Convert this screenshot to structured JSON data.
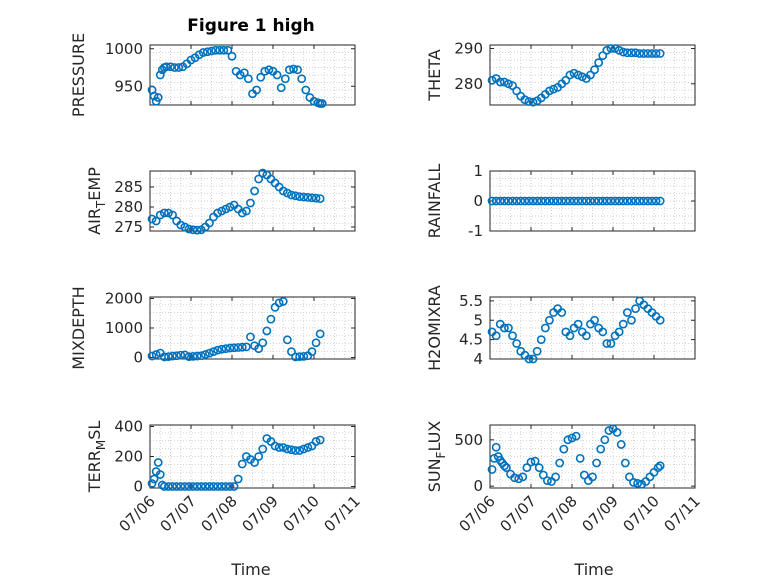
{
  "figure": {
    "title": "Figure 1 high"
  },
  "colors": {
    "series": "#0072BD",
    "axis": "#262626",
    "grid": "#c8c8c8"
  },
  "chart_data": [
    {
      "type": "scatter",
      "ylabel": "PRESSURE",
      "ylim": [
        925,
        1005
      ],
      "yticks": [
        950,
        1000
      ],
      "xlim": [
        0,
        5
      ],
      "xticks": [
        "07/06",
        "07/07",
        "07/08",
        "07/09",
        "07/10",
        "07/11"
      ],
      "grid": true,
      "x": [
        0.05,
        0.1,
        0.15,
        0.2,
        0.25,
        0.3,
        0.35,
        0.4,
        0.5,
        0.6,
        0.7,
        0.8,
        0.9,
        1.0,
        1.1,
        1.2,
        1.3,
        1.4,
        1.5,
        1.6,
        1.7,
        1.8,
        1.9,
        2.0,
        2.1,
        2.2,
        2.3,
        2.4,
        2.5,
        2.6,
        2.7,
        2.8,
        2.9,
        3.0,
        3.1,
        3.2,
        3.3,
        3.4,
        3.5,
        3.6,
        3.7,
        3.8,
        3.9,
        4.0,
        4.1,
        4.15,
        4.2
      ],
      "y": [
        945,
        937,
        930,
        935,
        965,
        972,
        975,
        976,
        976,
        975,
        975,
        976,
        980,
        985,
        988,
        992,
        995,
        996,
        997,
        998,
        998,
        998,
        998,
        990,
        970,
        965,
        968,
        960,
        940,
        945,
        962,
        970,
        972,
        970,
        965,
        948,
        960,
        972,
        973,
        972,
        960,
        945,
        935,
        930,
        928,
        927,
        927
      ]
    },
    {
      "type": "scatter",
      "ylabel": "THETA",
      "ylim": [
        274,
        291
      ],
      "yticks": [
        280,
        290
      ],
      "xlim": [
        0,
        5
      ],
      "xticks": [
        "07/06",
        "07/07",
        "07/08",
        "07/09",
        "07/10",
        "07/11"
      ],
      "grid": true,
      "x": [
        0.05,
        0.15,
        0.25,
        0.35,
        0.45,
        0.55,
        0.65,
        0.75,
        0.85,
        0.95,
        1.05,
        1.15,
        1.25,
        1.35,
        1.45,
        1.55,
        1.65,
        1.75,
        1.85,
        1.95,
        2.05,
        2.15,
        2.25,
        2.35,
        2.45,
        2.55,
        2.65,
        2.75,
        2.85,
        2.95,
        3.05,
        3.15,
        3.25,
        3.35,
        3.45,
        3.55,
        3.65,
        3.75,
        3.85,
        3.95,
        4.05,
        4.15
      ],
      "y": [
        281,
        281.5,
        280.5,
        280.5,
        280,
        279.5,
        278,
        276.5,
        275.5,
        275,
        274.8,
        275.2,
        276,
        277,
        278,
        278.5,
        279,
        280,
        281,
        282.5,
        283,
        282.5,
        282,
        281.5,
        282.5,
        284,
        286,
        288,
        289.5,
        290,
        290,
        289.5,
        289,
        288.8,
        288.8,
        288.8,
        288.6,
        288.6,
        288.6,
        288.6,
        288.6,
        288.6
      ]
    },
    {
      "type": "scatter",
      "ylabel": "AIR_TEMP",
      "ylim": [
        274,
        289
      ],
      "yticks": [
        275,
        280,
        285
      ],
      "xlim": [
        0,
        5
      ],
      "xticks": [
        "07/06",
        "07/07",
        "07/08",
        "07/09",
        "07/10",
        "07/11"
      ],
      "grid": true,
      "x": [
        0.05,
        0.15,
        0.25,
        0.35,
        0.45,
        0.55,
        0.65,
        0.75,
        0.85,
        0.95,
        1.05,
        1.15,
        1.25,
        1.35,
        1.45,
        1.55,
        1.65,
        1.75,
        1.85,
        1.95,
        2.05,
        2.15,
        2.25,
        2.35,
        2.45,
        2.55,
        2.65,
        2.75,
        2.85,
        2.95,
        3.05,
        3.15,
        3.25,
        3.35,
        3.45,
        3.55,
        3.65,
        3.75,
        3.85,
        3.95,
        4.05,
        4.15
      ],
      "y": [
        277,
        276.5,
        278,
        278.5,
        278.5,
        278,
        276.5,
        275.5,
        275,
        274.5,
        274.3,
        274.2,
        274.3,
        275,
        276,
        277.5,
        278.5,
        279,
        279.5,
        280,
        280.5,
        279.5,
        278.5,
        279,
        281,
        284,
        287,
        288.5,
        288,
        287,
        286,
        285,
        284,
        283.5,
        283,
        282.8,
        282.6,
        282.5,
        282.4,
        282.3,
        282.2,
        282.1
      ]
    },
    {
      "type": "scatter",
      "ylabel": "RAINFALL",
      "ylim": [
        -1,
        1
      ],
      "yticks": [
        -1,
        0,
        1
      ],
      "xlim": [
        0,
        5
      ],
      "xticks": [
        "07/06",
        "07/07",
        "07/08",
        "07/09",
        "07/10",
        "07/11"
      ],
      "grid": true,
      "x": [
        0.05,
        0.15,
        0.25,
        0.35,
        0.45,
        0.55,
        0.65,
        0.75,
        0.85,
        0.95,
        1.05,
        1.15,
        1.25,
        1.35,
        1.45,
        1.55,
        1.65,
        1.75,
        1.85,
        1.95,
        2.05,
        2.15,
        2.25,
        2.35,
        2.45,
        2.55,
        2.65,
        2.75,
        2.85,
        2.95,
        3.05,
        3.15,
        3.25,
        3.35,
        3.45,
        3.55,
        3.65,
        3.75,
        3.85,
        3.95,
        4.05,
        4.15
      ],
      "y": [
        0,
        0,
        0,
        0,
        0,
        0,
        0,
        0,
        0,
        0,
        0,
        0,
        0,
        0,
        0,
        0,
        0,
        0,
        0,
        0,
        0,
        0,
        0,
        0,
        0,
        0,
        0,
        0,
        0,
        0,
        0,
        0,
        0,
        0,
        0,
        0,
        0,
        0,
        0,
        0,
        0,
        0
      ]
    },
    {
      "type": "scatter",
      "ylabel": "MIXDEPTH",
      "ylim": [
        -50,
        2050
      ],
      "yticks": [
        0,
        1000,
        2000
      ],
      "xlim": [
        0,
        5
      ],
      "xticks": [
        "07/06",
        "07/07",
        "07/08",
        "07/09",
        "07/10",
        "07/11"
      ],
      "grid": true,
      "x": [
        0.05,
        0.15,
        0.25,
        0.35,
        0.45,
        0.55,
        0.65,
        0.75,
        0.85,
        0.95,
        1.05,
        1.15,
        1.25,
        1.35,
        1.45,
        1.55,
        1.65,
        1.75,
        1.85,
        1.95,
        2.05,
        2.15,
        2.25,
        2.35,
        2.45,
        2.55,
        2.65,
        2.75,
        2.85,
        2.95,
        3.05,
        3.15,
        3.25,
        3.35,
        3.45,
        3.55,
        3.65,
        3.75,
        3.85,
        3.95,
        4.05,
        4.15
      ],
      "y": [
        50,
        100,
        150,
        20,
        30,
        50,
        60,
        80,
        90,
        30,
        40,
        50,
        60,
        100,
        150,
        200,
        250,
        280,
        300,
        320,
        330,
        340,
        350,
        360,
        700,
        400,
        300,
        500,
        900,
        1300,
        1700,
        1850,
        1900,
        600,
        200,
        20,
        30,
        40,
        60,
        200,
        500,
        800
      ]
    },
    {
      "type": "scatter",
      "ylabel": "H2OMIXRA",
      "ylim": [
        4,
        5.6
      ],
      "yticks": [
        4,
        4.5,
        5,
        5.5
      ],
      "xlim": [
        0,
        5
      ],
      "xticks": [
        "07/06",
        "07/07",
        "07/08",
        "07/09",
        "07/10",
        "07/11"
      ],
      "grid": true,
      "x": [
        0.05,
        0.15,
        0.25,
        0.35,
        0.45,
        0.55,
        0.65,
        0.75,
        0.85,
        0.95,
        1.05,
        1.15,
        1.25,
        1.35,
        1.45,
        1.55,
        1.65,
        1.75,
        1.85,
        1.95,
        2.05,
        2.15,
        2.25,
        2.35,
        2.45,
        2.55,
        2.65,
        2.75,
        2.85,
        2.95,
        3.05,
        3.15,
        3.25,
        3.35,
        3.45,
        3.55,
        3.65,
        3.75,
        3.85,
        3.95,
        4.05,
        4.15
      ],
      "y": [
        4.7,
        4.6,
        4.9,
        4.8,
        4.8,
        4.6,
        4.4,
        4.2,
        4.1,
        4.0,
        4.0,
        4.2,
        4.5,
        4.8,
        5.0,
        5.2,
        5.3,
        5.2,
        4.7,
        4.6,
        4.8,
        4.9,
        4.7,
        4.6,
        4.9,
        5.0,
        4.8,
        4.7,
        4.4,
        4.4,
        4.6,
        4.7,
        4.9,
        5.2,
        5.0,
        5.3,
        5.5,
        5.4,
        5.3,
        5.2,
        5.1,
        5.0
      ]
    },
    {
      "type": "scatter",
      "ylabel": "TERR_MSL",
      "ylim": [
        -10,
        410
      ],
      "yticks": [
        0,
        200,
        400
      ],
      "xlim": [
        0,
        5
      ],
      "xticks": [
        "07/06",
        "07/07",
        "07/08",
        "07/09",
        "07/10",
        "07/11"
      ],
      "grid": true,
      "x": [
        0.05,
        0.1,
        0.15,
        0.2,
        0.25,
        0.3,
        0.35,
        0.45,
        0.55,
        0.65,
        0.75,
        0.85,
        0.95,
        1.05,
        1.15,
        1.25,
        1.35,
        1.45,
        1.55,
        1.65,
        1.75,
        1.85,
        1.95,
        2.05,
        2.15,
        2.25,
        2.35,
        2.45,
        2.55,
        2.65,
        2.75,
        2.85,
        2.95,
        3.05,
        3.15,
        3.25,
        3.35,
        3.45,
        3.55,
        3.65,
        3.75,
        3.85,
        3.95,
        4.05,
        4.15
      ],
      "y": [
        20,
        50,
        100,
        160,
        80,
        10,
        0,
        0,
        0,
        0,
        0,
        0,
        0,
        0,
        0,
        0,
        0,
        0,
        0,
        0,
        0,
        0,
        0,
        0,
        50,
        150,
        200,
        180,
        160,
        200,
        250,
        320,
        300,
        270,
        260,
        260,
        250,
        245,
        240,
        240,
        250,
        260,
        270,
        300,
        310
      ]
    },
    {
      "type": "scatter",
      "ylabel": "SUN_FLUX",
      "ylim": [
        -20,
        660
      ],
      "yticks": [
        0,
        500
      ],
      "xlim": [
        0,
        5
      ],
      "xticks": [
        "07/06",
        "07/07",
        "07/08",
        "07/09",
        "07/10",
        "07/11"
      ],
      "grid": true,
      "x": [
        0.05,
        0.1,
        0.15,
        0.2,
        0.25,
        0.3,
        0.35,
        0.4,
        0.5,
        0.6,
        0.7,
        0.8,
        0.9,
        1.0,
        1.1,
        1.2,
        1.3,
        1.4,
        1.5,
        1.6,
        1.7,
        1.8,
        1.9,
        2.0,
        2.1,
        2.2,
        2.3,
        2.4,
        2.5,
        2.6,
        2.7,
        2.8,
        2.9,
        3.0,
        3.1,
        3.2,
        3.3,
        3.4,
        3.5,
        3.6,
        3.7,
        3.8,
        3.9,
        4.0,
        4.1,
        4.15
      ],
      "y": [
        180,
        300,
        420,
        320,
        280,
        250,
        220,
        200,
        130,
        90,
        80,
        100,
        200,
        260,
        270,
        200,
        120,
        60,
        50,
        100,
        250,
        400,
        500,
        520,
        540,
        300,
        120,
        60,
        100,
        250,
        400,
        500,
        600,
        620,
        580,
        450,
        250,
        100,
        40,
        30,
        20,
        50,
        100,
        150,
        200,
        220
      ]
    }
  ],
  "xlabel": "Time"
}
